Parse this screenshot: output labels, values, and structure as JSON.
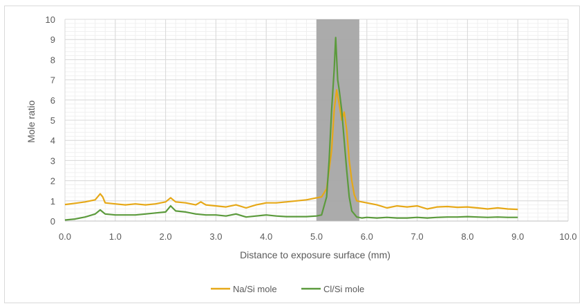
{
  "chart_data": {
    "type": "line",
    "title": "",
    "xlabel": "Distance to exposure surface (mm)",
    "ylabel": "Mole ratio",
    "xlim": [
      0,
      10
    ],
    "ylim": [
      0,
      10
    ],
    "x_ticks": [
      "0.0",
      "1.0",
      "2.0",
      "3.0",
      "4.0",
      "5.0",
      "6.0",
      "7.0",
      "8.0",
      "9.0",
      "10.0"
    ],
    "y_ticks": [
      "0",
      "1",
      "2",
      "3",
      "4",
      "5",
      "6",
      "7",
      "8",
      "9",
      "10"
    ],
    "grid": true,
    "legend": "bottom",
    "shaded_region": {
      "x_start": 5.0,
      "x_end": 5.85,
      "color": "#a6a6a6"
    },
    "series": [
      {
        "name": "Na/Si mole",
        "color": "#e6a817",
        "points": [
          [
            0.0,
            0.82
          ],
          [
            0.2,
            0.88
          ],
          [
            0.4,
            0.95
          ],
          [
            0.6,
            1.05
          ],
          [
            0.7,
            1.35
          ],
          [
            0.75,
            1.2
          ],
          [
            0.8,
            0.9
          ],
          [
            1.0,
            0.85
          ],
          [
            1.2,
            0.8
          ],
          [
            1.4,
            0.85
          ],
          [
            1.6,
            0.8
          ],
          [
            1.8,
            0.85
          ],
          [
            2.0,
            0.95
          ],
          [
            2.1,
            1.15
          ],
          [
            2.2,
            0.95
          ],
          [
            2.4,
            0.9
          ],
          [
            2.6,
            0.8
          ],
          [
            2.7,
            0.95
          ],
          [
            2.8,
            0.8
          ],
          [
            3.0,
            0.75
          ],
          [
            3.2,
            0.7
          ],
          [
            3.4,
            0.8
          ],
          [
            3.6,
            0.65
          ],
          [
            3.8,
            0.8
          ],
          [
            4.0,
            0.9
          ],
          [
            4.2,
            0.9
          ],
          [
            4.4,
            0.95
          ],
          [
            4.6,
            1.0
          ],
          [
            4.8,
            1.05
          ],
          [
            5.0,
            1.15
          ],
          [
            5.1,
            1.2
          ],
          [
            5.2,
            1.6
          ],
          [
            5.3,
            3.5
          ],
          [
            5.35,
            5.5
          ],
          [
            5.4,
            6.5
          ],
          [
            5.45,
            5.8
          ],
          [
            5.5,
            5.0
          ],
          [
            5.55,
            5.4
          ],
          [
            5.6,
            4.5
          ],
          [
            5.65,
            3.0
          ],
          [
            5.7,
            2.0
          ],
          [
            5.75,
            1.3
          ],
          [
            5.8,
            1.0
          ],
          [
            5.9,
            0.95
          ],
          [
            6.0,
            0.9
          ],
          [
            6.2,
            0.8
          ],
          [
            6.4,
            0.65
          ],
          [
            6.6,
            0.75
          ],
          [
            6.8,
            0.7
          ],
          [
            7.0,
            0.75
          ],
          [
            7.2,
            0.6
          ],
          [
            7.4,
            0.7
          ],
          [
            7.6,
            0.72
          ],
          [
            7.8,
            0.68
          ],
          [
            8.0,
            0.7
          ],
          [
            8.2,
            0.65
          ],
          [
            8.4,
            0.6
          ],
          [
            8.6,
            0.65
          ],
          [
            8.8,
            0.6
          ],
          [
            9.0,
            0.58
          ]
        ]
      },
      {
        "name": "Cl/Si mole",
        "color": "#5b9a3c",
        "points": [
          [
            0.0,
            0.05
          ],
          [
            0.2,
            0.1
          ],
          [
            0.4,
            0.2
          ],
          [
            0.6,
            0.35
          ],
          [
            0.7,
            0.55
          ],
          [
            0.75,
            0.45
          ],
          [
            0.8,
            0.35
          ],
          [
            1.0,
            0.3
          ],
          [
            1.2,
            0.3
          ],
          [
            1.4,
            0.3
          ],
          [
            1.6,
            0.35
          ],
          [
            1.8,
            0.4
          ],
          [
            2.0,
            0.45
          ],
          [
            2.1,
            0.75
          ],
          [
            2.2,
            0.5
          ],
          [
            2.4,
            0.45
          ],
          [
            2.6,
            0.35
          ],
          [
            2.8,
            0.3
          ],
          [
            3.0,
            0.3
          ],
          [
            3.2,
            0.25
          ],
          [
            3.4,
            0.35
          ],
          [
            3.6,
            0.2
          ],
          [
            3.8,
            0.25
          ],
          [
            4.0,
            0.3
          ],
          [
            4.2,
            0.25
          ],
          [
            4.4,
            0.22
          ],
          [
            4.6,
            0.22
          ],
          [
            4.8,
            0.22
          ],
          [
            5.0,
            0.25
          ],
          [
            5.1,
            0.3
          ],
          [
            5.2,
            1.2
          ],
          [
            5.25,
            3.0
          ],
          [
            5.3,
            5.5
          ],
          [
            5.35,
            7.5
          ],
          [
            5.38,
            9.1
          ],
          [
            5.42,
            7.0
          ],
          [
            5.45,
            6.5
          ],
          [
            5.5,
            5.5
          ],
          [
            5.55,
            4.0
          ],
          [
            5.6,
            2.5
          ],
          [
            5.65,
            1.2
          ],
          [
            5.7,
            0.5
          ],
          [
            5.8,
            0.2
          ],
          [
            5.9,
            0.15
          ],
          [
            6.0,
            0.18
          ],
          [
            6.2,
            0.15
          ],
          [
            6.4,
            0.18
          ],
          [
            6.6,
            0.15
          ],
          [
            6.8,
            0.15
          ],
          [
            7.0,
            0.18
          ],
          [
            7.2,
            0.15
          ],
          [
            7.4,
            0.18
          ],
          [
            7.6,
            0.2
          ],
          [
            7.8,
            0.2
          ],
          [
            8.0,
            0.22
          ],
          [
            8.2,
            0.2
          ],
          [
            8.4,
            0.18
          ],
          [
            8.6,
            0.2
          ],
          [
            8.8,
            0.18
          ],
          [
            9.0,
            0.18
          ]
        ]
      }
    ]
  }
}
